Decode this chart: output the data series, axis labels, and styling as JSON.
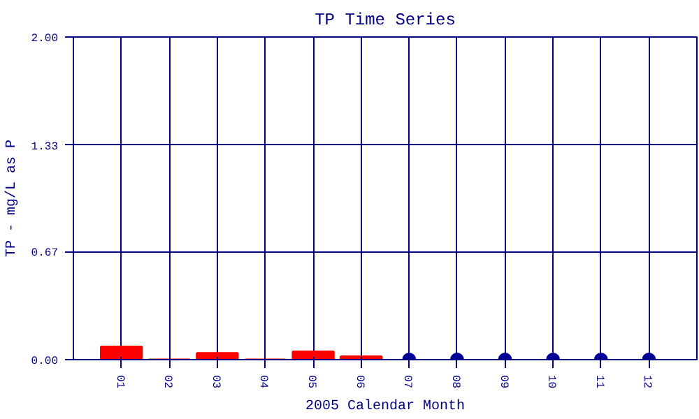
{
  "chart_data": {
    "type": "bar",
    "title": "TP Time Series",
    "xlabel": "2005 Calendar Month",
    "ylabel": "TP - mg/L as P",
    "categories": [
      "01",
      "02",
      "03",
      "04",
      "05",
      "06",
      "07",
      "08",
      "09",
      "10",
      "11",
      "12"
    ],
    "series": [
      {
        "type": "bar",
        "color": "#ff0000",
        "values": [
          0.08,
          0,
          0.04,
          0,
          0.05,
          0.02,
          null,
          null,
          null,
          null,
          null,
          null
        ]
      },
      {
        "type": "scatter",
        "color": "#000099",
        "x": [
          "07",
          "08",
          "09",
          "10",
          "11",
          "12"
        ],
        "values": [
          0,
          0,
          0,
          0,
          0,
          0
        ]
      }
    ],
    "ylim": [
      0,
      2
    ],
    "yticks": [
      {
        "value": 0,
        "label": "0.00"
      },
      {
        "value": 0.67,
        "label": "0.67"
      },
      {
        "value": 1.33,
        "label": "1.33"
      },
      {
        "value": 2,
        "label": "2.00"
      }
    ],
    "grid": true,
    "marker": "circle"
  }
}
